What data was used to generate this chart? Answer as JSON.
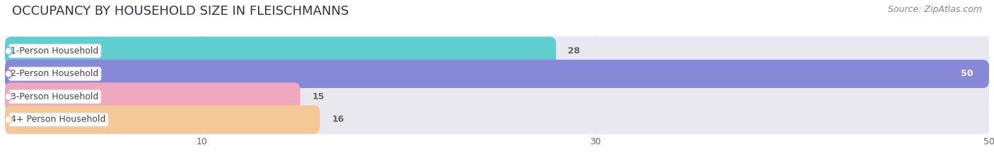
{
  "title": "OCCUPANCY BY HOUSEHOLD SIZE IN FLEISCHMANNS",
  "source": "Source: ZipAtlas.com",
  "categories": [
    "1-Person Household",
    "2-Person Household",
    "3-Person Household",
    "4+ Person Household"
  ],
  "values": [
    28,
    50,
    15,
    16
  ],
  "bar_colors": [
    "#5ecece",
    "#8888d8",
    "#f0a8c0",
    "#f5c898"
  ],
  "bar_bg_color": "#e8e8ee",
  "xlim": [
    0,
    50
  ],
  "xticks": [
    10,
    30,
    50
  ],
  "value_label_inside_color": "#ffffff",
  "value_label_outside_color": "#666666",
  "title_fontsize": 13,
  "source_fontsize": 9,
  "bar_label_fontsize": 9,
  "value_fontsize": 9,
  "tick_fontsize": 9,
  "fig_bg_color": "#ffffff",
  "axes_bg_color": "#f0f0f5"
}
